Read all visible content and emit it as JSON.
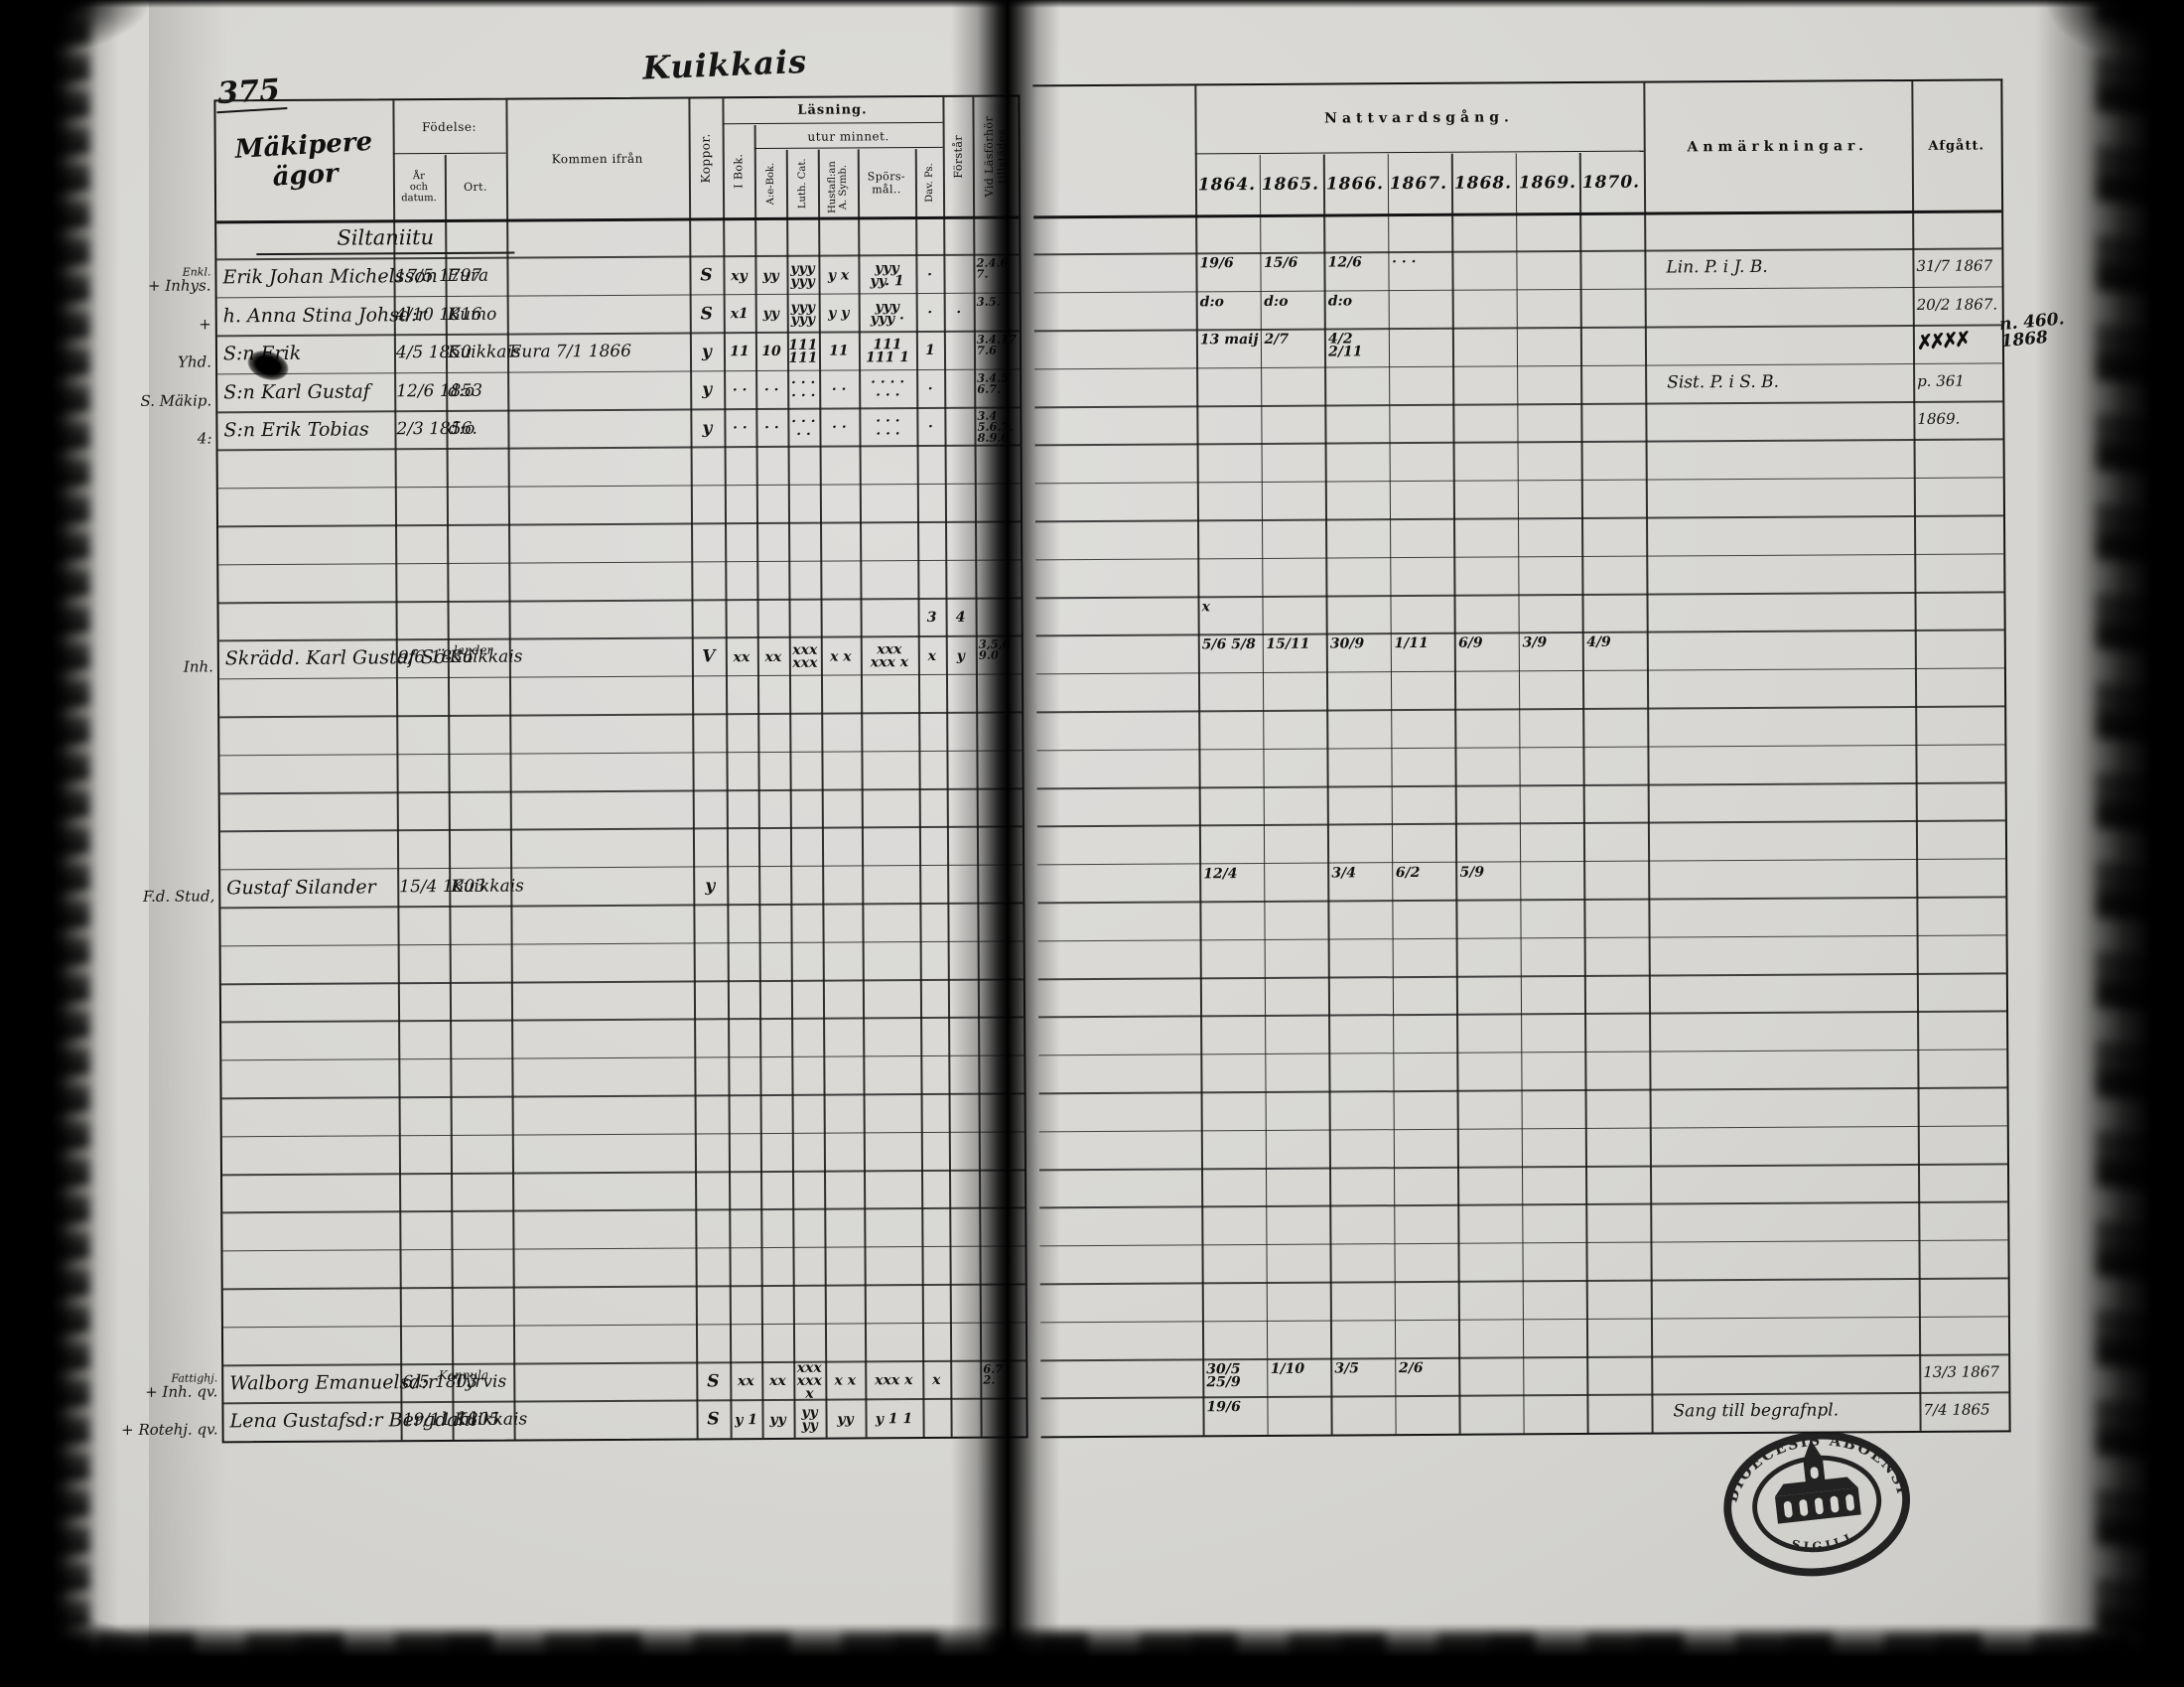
{
  "page": {
    "number": "375",
    "title": "Kuikkais"
  },
  "left_table": {
    "owner": "Mäkipere ägor",
    "headers": {
      "fodelse": "Födelse:",
      "ar": "År\noch datum.",
      "ort": "Ort.",
      "kommen": "Kommen ifrån",
      "koppor": "Koppor.",
      "lasning": "Läsning.",
      "utur": "utur minnet.",
      "ibok": "I Bok.",
      "aebok": "A:e-Bok.",
      "luthcat": "Luth. Cat.",
      "hustafl": "Hustafl:an\nA. Symb.",
      "sporsmal": "Spörs-\nmål..",
      "davps": "Dav. Ps.",
      "forstar": "Förstår",
      "vidlas": "Vid Läsförhör\ntillstädes"
    }
  },
  "right_table": {
    "communion_header": "Nattvardsgång.",
    "years": [
      "1864.",
      "1865.",
      "1866.",
      "1867.",
      "1868.",
      "1869.",
      "1870."
    ],
    "anmarkningar": "Anmärkningar.",
    "afgatt": "Afgått."
  },
  "rows": [
    {
      "r": 0,
      "heading": "Siltaniitu"
    },
    {
      "r": 1,
      "margin": "+ Inhys.",
      "margin_sup": "Enkl.",
      "name": "Erik Johan Michelsson",
      "datum": "17/5 1797",
      "ort": "Eura",
      "koppor": "S",
      "marks": {
        "ibok": "xy",
        "aebok": "yy",
        "luthcat": "yyy\nyyy",
        "hustafl": "y x",
        "sporsmal": "yyy\nyy. 1",
        "davps": "·"
      },
      "vidlas": "2.4.6\n7.",
      "natt": {
        "1864": "19/6",
        "1865": "15/6",
        "1866": "12/6",
        "1867": "· · ·"
      },
      "anm": "Lin. P. i J. B.",
      "afg": "31/7 1867"
    },
    {
      "r": 2,
      "margin": "+",
      "name": "h. Anna Stina Johsd:r",
      "datum": "4/10 1816",
      "ort": "Kumo",
      "koppor": "S",
      "marks": {
        "ibok": "x1",
        "aebok": "yy",
        "luthcat": "yyy\nyyy",
        "hustafl": "y y",
        "sporsmal": "yyy\nyyy ·",
        "davps": "·",
        "forstar": "·"
      },
      "vidlas": "3.5.",
      "natt": {
        "1864": "d:o",
        "1865": "d:o",
        "1866": "d:o"
      },
      "afg": "20/2 1867."
    },
    {
      "r": 3,
      "margin": "Yhd.",
      "name": "S:n Erik",
      "datum": "4/5 1850",
      "ort": "Kuikkais",
      "kommen": "Eura 7/1 1866",
      "koppor": "y",
      "marks": {
        "ibok": "11",
        "aebok": "10",
        "luthcat": "111\n111",
        "hustafl": "11",
        "sporsmal": "111\n111 1",
        "davps": "1"
      },
      "vidlas": "3.4.17\n7.6",
      "natt": {
        "1864": "13 maij",
        "1865": "2/7",
        "1866": "4/2 2/11"
      },
      "afg": "✗✗✗✗",
      "afg_scribble": true
    },
    {
      "r": 4,
      "margin": "S. Mäkip.",
      "name": "S:n Karl Gustaf",
      "datum": "12/6 1853",
      "ort": "d:o",
      "koppor": "y",
      "marks": {
        "ibok": "· ·",
        "aebok": "· ·",
        "luthcat": "· · ·\n· · ·",
        "hustafl": "· ·",
        "sporsmal": "· · · ·\n· · ·",
        "davps": "·"
      },
      "vidlas": "3.4.5\n6.7.",
      "anm": "Sist. P. i S. B.",
      "afg": "p. 361"
    },
    {
      "r": 5,
      "margin": "4:",
      "name": "S:n Erik Tobias",
      "datum": "2/3 1856.",
      "ort": "d:o",
      "koppor": "y",
      "marks": {
        "ibok": "· ·",
        "aebok": "· ·",
        "luthcat": "· · ·\n· ·",
        "hustafl": "· ·",
        "sporsmal": "· · ·\n· · ·",
        "davps": "·"
      },
      "vidlas": "3.4\n5.6.7.\n8.9.0",
      "afg": "1869."
    },
    {
      "r": 10,
      "marks": {
        "davps": "3",
        "forstar": "4"
      },
      "natt": {
        "1864": "x"
      }
    },
    {
      "r": 11,
      "margin": "Inh.",
      "name": "Skrädd. Karl Gustaf Sö-",
      "name_sup": "lander",
      "datum": "9/6 1836",
      "ort": "Kuikkais",
      "koppor": "V",
      "marks": {
        "ibok": "xx",
        "aebok": "xx",
        "luthcat": "xxx\nxxx",
        "hustafl": "x x",
        "sporsmal": "xxx\nxxx x",
        "davps": "x",
        "forstar": "y"
      },
      "vidlas": "3,5,6\n9.0",
      "natt": {
        "1864": "5/6 5/8",
        "1865": "15/11",
        "1866": "30/9",
        "1867": "1/11",
        "1868": "6/9",
        "1869": "3/9",
        "1870": "4/9"
      }
    },
    {
      "r": 17,
      "margin": "F.d. Stud,",
      "name": "Gustaf Silander",
      "datum": "15/4 1803",
      "ort": "Kuikkais",
      "koppor": "y",
      "natt": {
        "1864": "12/4",
        "1866": "3/4",
        "1867": "6/2",
        "1868": "5/9"
      }
    },
    {
      "r": 30,
      "margin": "+ Inh. qv.",
      "margin_sup": "Fattighj.",
      "name": "Walborg Emanuelsd:r",
      "name_sup2": "Kannula",
      "datum": "6/5 1803",
      "ort": "Tyrvis",
      "koppor": "S",
      "marks": {
        "ibok": "xx",
        "aebok": "xx",
        "luthcat": "xxx\nxxx x",
        "hustafl": "x x",
        "sporsmal": "xxx x",
        "davps": "x"
      },
      "vidlas": "6.7\n2.",
      "natt": {
        "1864": "30/5 25/9",
        "1865": "1/10",
        "1866": "3/5",
        "1867": "2/6"
      },
      "afg": "13/3 1867"
    },
    {
      "r": 31,
      "margin": "+ Rotehj. qv.",
      "name": "Lena Gustafsd:r Bergdahl",
      "datum": "19/11 1805",
      "ort": "Kuikkais",
      "koppor": "S",
      "marks": {
        "ibok": "y 1",
        "aebok": "yy",
        "luthcat": "yy\nyy",
        "hustafl": "yy",
        "sporsmal": "y 1 1"
      },
      "natt": {
        "1864": "19/6"
      },
      "anm": "Sang till begrafnpl.",
      "afg": "7/4 1865"
    }
  ],
  "stamp": {
    "top_text": "DIOECESIS ABOENSIS",
    "bottom_text": "SIGILL"
  },
  "notes": {
    "page_ref": "n. 460.\n1868"
  }
}
